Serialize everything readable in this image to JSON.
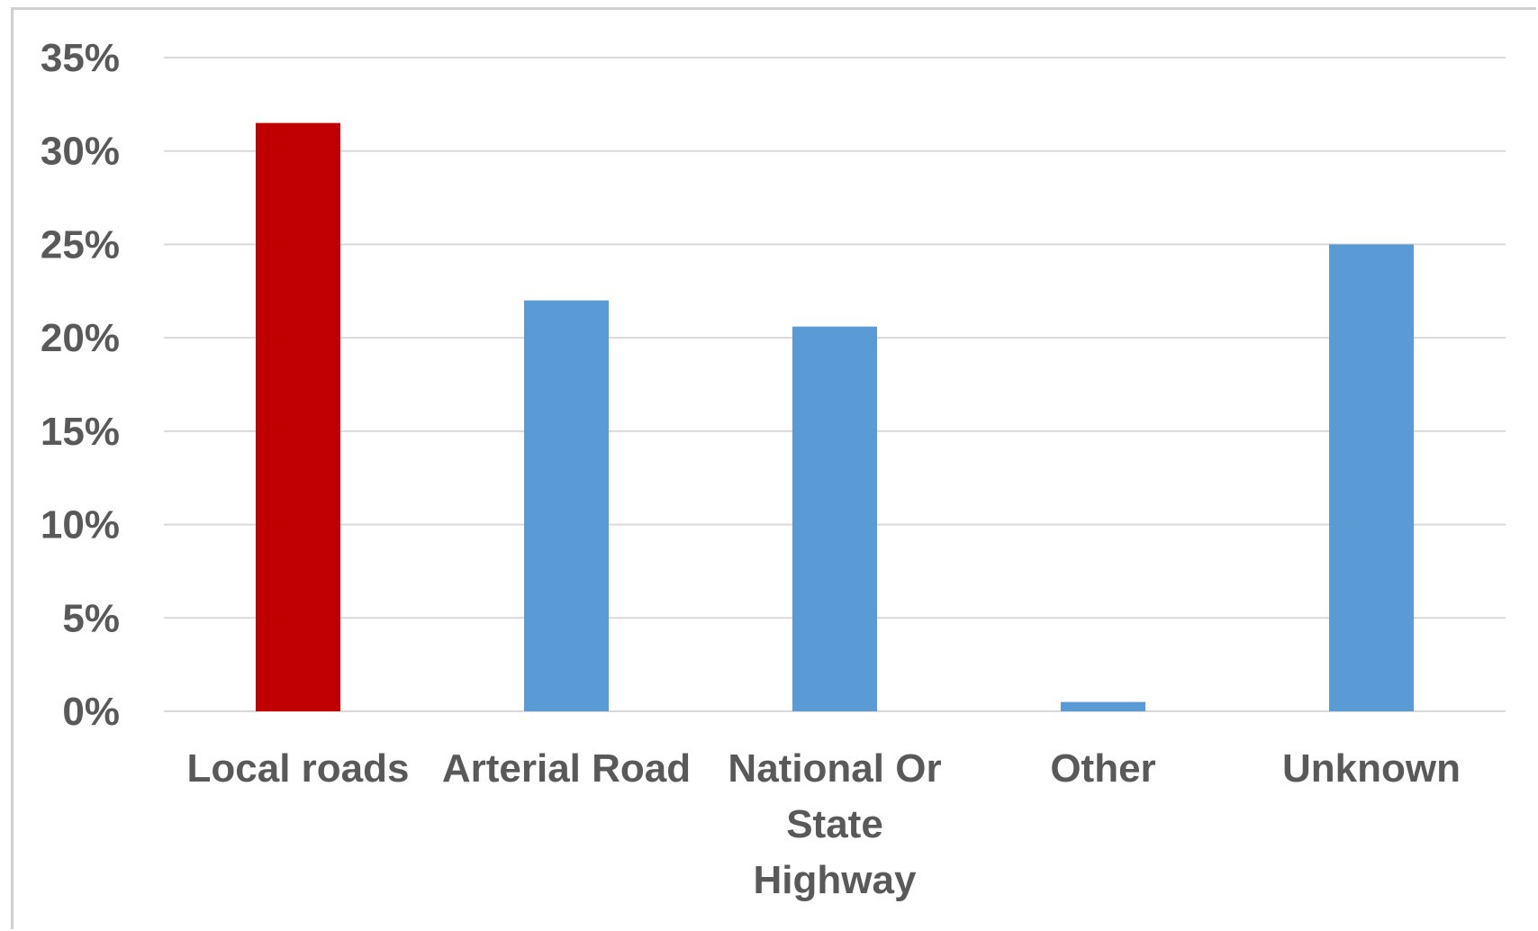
{
  "chart_data": {
    "type": "bar",
    "categories": [
      "Local roads",
      "Arterial Road",
      "National Or State Highway",
      "Other",
      "Unknown"
    ],
    "category_lines": [
      [
        "Local roads"
      ],
      [
        "Arterial Road"
      ],
      [
        "National Or",
        "State",
        "Highway"
      ],
      [
        "Other"
      ],
      [
        "Unknown"
      ]
    ],
    "values": [
      31.5,
      22.0,
      20.6,
      0.5,
      25.0
    ],
    "bar_colors": [
      "#C00000",
      "#5B9BD5",
      "#5B9BD5",
      "#5B9BD5",
      "#5B9BD5"
    ],
    "ylim": [
      0,
      35
    ],
    "yticks": [
      0,
      5,
      10,
      15,
      20,
      25,
      30,
      35
    ],
    "ytick_labels": [
      "0%",
      "5%",
      "10%",
      "15%",
      "20%",
      "25%",
      "30%",
      "35%"
    ],
    "title": "",
    "xlabel": "",
    "ylabel": "",
    "grid": true,
    "legend": "none"
  }
}
